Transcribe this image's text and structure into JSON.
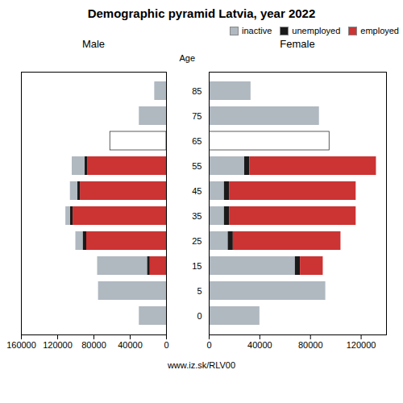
{
  "title": "Demographic pyramid Latvia, year 2022",
  "annotations": [
    "www.iz.sk/RLV00"
  ],
  "chart_data": [
    {
      "type": "bar",
      "title": "Male",
      "orientation": "horizontal",
      "stacked": true,
      "categories": [
        "0",
        "5",
        "15",
        "25",
        "35",
        "45",
        "55",
        "65",
        "75",
        "85"
      ],
      "series": [
        {
          "name": "employed",
          "color": "#cc3333",
          "values": [
            0,
            0,
            18000,
            88000,
            103000,
            95000,
            87000,
            0,
            0,
            0
          ]
        },
        {
          "name": "unemployed",
          "color": "#1a1a1a",
          "values": [
            0,
            0,
            3000,
            4000,
            3000,
            3000,
            3000,
            0,
            0,
            0
          ]
        },
        {
          "name": "inactive",
          "color": "#b0b8c0",
          "colors": [
            "#b0b8c0",
            "#b0b8c0",
            "#b0b8c0",
            "#b0b8c0",
            "#b0b8c0",
            "#b0b8c0",
            "#b0b8c0",
            "#ffffff",
            "#b0b8c0",
            "#b0b8c0"
          ],
          "values": [
            30000,
            75000,
            55000,
            8000,
            5000,
            8000,
            14000,
            62000,
            30000,
            13000
          ]
        }
      ],
      "xlim": [
        160000,
        0
      ],
      "xticks": [
        160000,
        120000,
        80000,
        40000,
        0
      ]
    },
    {
      "type": "bar",
      "title": "Female",
      "ylabel": "Age",
      "orientation": "horizontal",
      "stacked": true,
      "categories": [
        "0",
        "5",
        "15",
        "25",
        "35",
        "45",
        "55",
        "65",
        "75",
        "85"
      ],
      "series": [
        {
          "name": "inactive",
          "color": "#b0b8c0",
          "colors": [
            "#b0b8c0",
            "#b0b8c0",
            "#b0b8c0",
            "#b0b8c0",
            "#b0b8c0",
            "#b0b8c0",
            "#b0b8c0",
            "#ffffff",
            "#b0b8c0",
            "#b0b8c0"
          ],
          "values": [
            40000,
            92000,
            68000,
            15000,
            12000,
            12000,
            28000,
            95000,
            87000,
            33000
          ]
        },
        {
          "name": "unemployed",
          "color": "#1a1a1a",
          "values": [
            0,
            0,
            4000,
            4000,
            4000,
            4000,
            4000,
            0,
            0,
            0
          ]
        },
        {
          "name": "employed",
          "color": "#cc3333",
          "values": [
            0,
            0,
            18000,
            85000,
            100000,
            100000,
            100000,
            0,
            0,
            0
          ]
        }
      ],
      "xlim": [
        0,
        140000
      ],
      "xticks": [
        0,
        40000,
        80000,
        120000
      ],
      "legend": "upper right"
    }
  ]
}
